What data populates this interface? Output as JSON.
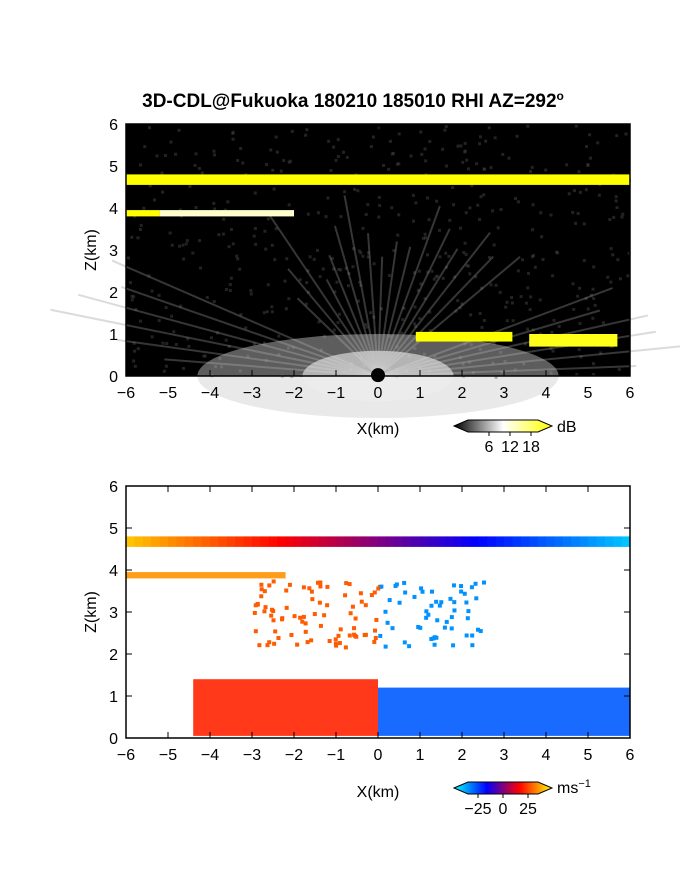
{
  "title": "3D-CDL@Fukuoka 180210 185010 RHI AZ=292",
  "title_degree": "o",
  "chart_data": [
    {
      "type": "heatmap",
      "xlabel": "X(km)",
      "ylabel": "Z(km)",
      "xlim": [
        -6,
        6
      ],
      "ylim": [
        0,
        6
      ],
      "xticks": [
        -6,
        -5,
        -4,
        -3,
        -2,
        -1,
        0,
        1,
        2,
        3,
        4,
        5,
        6
      ],
      "yticks": [
        0,
        1,
        2,
        3,
        4,
        5,
        6
      ],
      "colorbar": {
        "label": "dB",
        "ticks": [
          6,
          12,
          18
        ],
        "range": [
          0,
          20
        ],
        "colors": [
          "#000000",
          "#ffffff",
          "#ffff00"
        ]
      },
      "background": "#000000",
      "layers": [
        {
          "x": [
            -6,
            6
          ],
          "z": [
            4.55,
            4.8
          ],
          "value": 20
        },
        {
          "x": [
            -6,
            -5.2
          ],
          "z": [
            3.8,
            3.95
          ],
          "value": 20
        },
        {
          "x": [
            -5.2,
            -2
          ],
          "z": [
            3.8,
            3.95
          ],
          "value": 12
        },
        {
          "x": [
            0.9,
            3.2
          ],
          "z": [
            0.82,
            1.05
          ],
          "value": 20
        },
        {
          "x": [
            3.6,
            5.7
          ],
          "z": [
            0.7,
            1.0
          ],
          "value": 19
        }
      ]
    },
    {
      "type": "heatmap",
      "xlabel": "X(km)",
      "ylabel": "Z(km)",
      "xlim": [
        -6,
        6
      ],
      "ylim": [
        0,
        6
      ],
      "xticks": [
        -6,
        -5,
        -4,
        -3,
        -2,
        -1,
        0,
        1,
        2,
        3,
        4,
        5,
        6
      ],
      "yticks": [
        0,
        1,
        2,
        3,
        4,
        5,
        6
      ],
      "colorbar": {
        "label": "ms",
        "label_exponent": "−1",
        "ticks": [
          "−25",
          "0",
          "25"
        ],
        "range": [
          -35,
          35
        ],
        "colors": [
          "#00ffff",
          "#0000ff",
          "#ff0000",
          "#ffff00"
        ]
      },
      "background": "#ffffff",
      "layers": [
        {
          "x": [
            -6,
            6
          ],
          "z": [
            4.55,
            4.8
          ],
          "velocity": "linear from +30 at x=-6 to -30 at x=6"
        },
        {
          "x": [
            -6,
            -2.2
          ],
          "z": [
            3.8,
            3.95
          ],
          "velocity": 25
        },
        {
          "x": [
            -4.4,
            0
          ],
          "z": [
            0.05,
            1.4
          ],
          "velocity": 15
        },
        {
          "x": [
            0,
            6
          ],
          "z": [
            0.05,
            1.2
          ],
          "velocity": -20
        }
      ]
    }
  ]
}
